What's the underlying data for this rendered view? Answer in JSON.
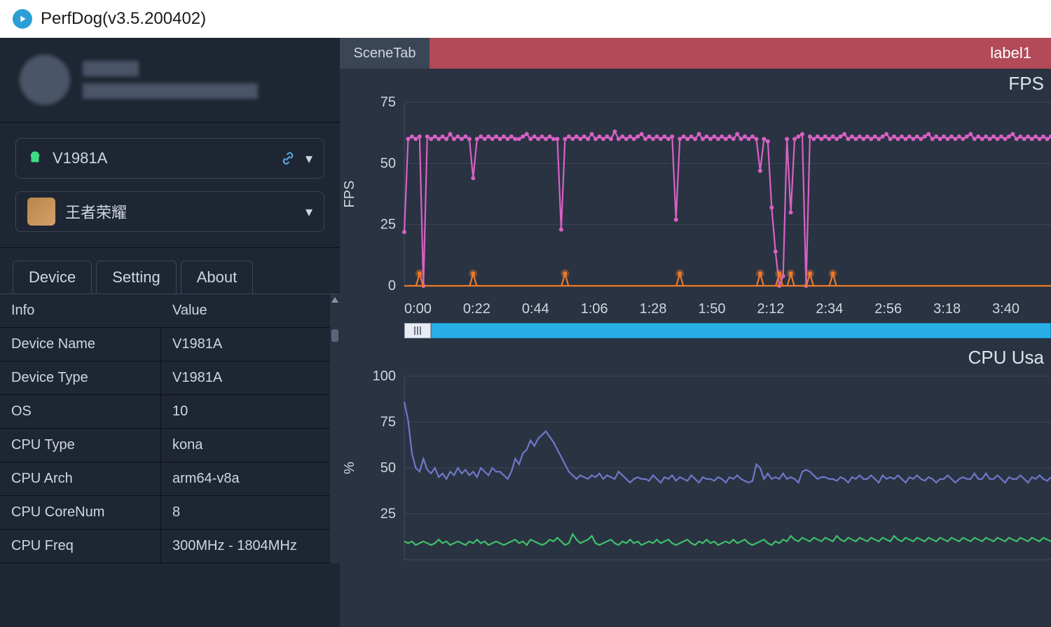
{
  "window": {
    "title": "PerfDog(v3.5.200402)"
  },
  "sidebar": {
    "device_selector": {
      "label": "V1981A"
    },
    "app_selector": {
      "label": "王者荣耀"
    },
    "tabs": {
      "device": "Device",
      "setting": "Setting",
      "about": "About"
    },
    "info_header": {
      "info": "Info",
      "value": "Value"
    },
    "info_rows": [
      {
        "k": "Device Name",
        "v": "V1981A"
      },
      {
        "k": "Device Type",
        "v": "V1981A"
      },
      {
        "k": "OS",
        "v": "10"
      },
      {
        "k": "CPU Type",
        "v": "kona"
      },
      {
        "k": "CPU Arch",
        "v": "arm64-v8a"
      },
      {
        "k": "CPU CoreNum",
        "v": "8"
      },
      {
        "k": "CPU Freq",
        "v": "300MHz - 1804MHz"
      }
    ]
  },
  "scene": {
    "tab": "SceneTab",
    "label": "label1"
  },
  "colors": {
    "bg_main": "#2a3342",
    "bg_side": "#1e2633",
    "text": "#cfd6e1",
    "accent": "#29aee6",
    "fps_line": "#d861c5",
    "jank_line": "#ee7b2a",
    "cpu_app": "#6f78c8",
    "cpu_sys": "#3fbf6a",
    "label_bar": "#b24a58",
    "grid": "#3a4556"
  },
  "fps_chart": {
    "type": "line",
    "title": "FPS",
    "ylabel": "FPS",
    "ylim": [
      0,
      75
    ],
    "yticks": [
      0,
      25,
      50,
      75
    ],
    "xlim_sec": [
      0,
      230
    ],
    "xticks_labels": [
      "0:00",
      "0:22",
      "0:44",
      "1:06",
      "1:28",
      "1:50",
      "2:12",
      "2:34",
      "2:56",
      "3:18",
      "3:40"
    ],
    "fps_series": [
      22,
      60,
      61,
      60,
      61,
      0,
      61,
      60,
      61,
      60,
      61,
      60,
      62,
      60,
      61,
      60,
      61,
      60,
      44,
      60,
      61,
      60,
      61,
      60,
      61,
      60,
      61,
      60,
      61,
      60,
      60,
      61,
      62,
      60,
      61,
      60,
      61,
      60,
      61,
      60,
      60,
      23,
      60,
      61,
      60,
      61,
      60,
      61,
      60,
      62,
      60,
      61,
      60,
      61,
      60,
      63,
      60,
      61,
      60,
      61,
      60,
      61,
      62,
      60,
      61,
      60,
      61,
      60,
      61,
      60,
      61,
      27,
      60,
      61,
      60,
      61,
      60,
      62,
      60,
      61,
      60,
      61,
      60,
      61,
      60,
      61,
      60,
      62,
      60,
      61,
      60,
      61,
      60,
      47,
      60,
      59,
      32,
      14,
      0,
      4,
      60,
      30,
      60,
      61,
      62,
      0,
      61,
      60,
      61,
      60,
      61,
      60,
      61,
      60,
      61,
      62,
      60,
      61,
      60,
      61,
      60,
      61,
      60,
      61,
      60,
      61,
      62,
      60,
      61,
      60,
      61,
      60,
      61,
      60,
      61,
      60,
      61,
      62,
      60,
      61,
      60,
      61,
      60,
      61,
      60,
      61,
      60,
      61,
      62,
      60,
      61,
      60,
      61,
      60,
      61,
      60,
      61,
      60,
      61,
      62,
      60,
      61,
      60,
      61,
      60,
      61,
      60,
      61,
      60,
      61
    ],
    "jank_series_x": [
      4,
      18,
      42,
      72,
      93,
      98,
      101,
      106,
      112
    ],
    "line_color": "#d861c5",
    "jank_color": "#ee7b2a",
    "marker_size": 3
  },
  "cpu_chart": {
    "type": "line",
    "title": "CPU Usa",
    "ylabel": "%",
    "ylim": [
      0,
      100
    ],
    "yticks": [
      25,
      50,
      75,
      100
    ],
    "app_series": [
      86,
      76,
      58,
      50,
      48,
      55,
      49,
      47,
      50,
      45,
      47,
      44,
      48,
      46,
      50,
      47,
      49,
      46,
      48,
      45,
      50,
      48,
      46,
      50,
      48,
      48,
      46,
      44,
      48,
      55,
      52,
      58,
      60,
      65,
      62,
      66,
      68,
      70,
      67,
      64,
      60,
      56,
      52,
      48,
      46,
      44,
      46,
      45,
      44,
      46,
      45,
      47,
      44,
      46,
      45,
      44,
      48,
      46,
      44,
      42,
      44,
      45,
      44,
      44,
      43,
      46,
      44,
      42,
      45,
      44,
      46,
      43,
      45,
      44,
      43,
      46,
      44,
      42,
      45,
      44,
      44,
      43,
      45,
      44,
      42,
      45,
      44,
      46,
      44,
      43,
      42,
      43,
      52,
      50,
      44,
      47,
      44,
      45,
      44,
      47,
      44,
      45,
      44,
      42,
      48,
      49,
      48,
      46,
      44,
      45,
      45,
      44,
      44,
      43,
      45,
      44,
      42,
      45,
      44,
      46,
      44,
      44,
      46,
      44,
      42,
      46,
      44,
      45,
      44,
      46,
      44,
      42,
      45,
      44,
      46,
      44,
      43,
      45,
      44,
      42,
      44,
      44,
      46,
      44,
      42,
      44,
      45,
      44,
      44,
      47,
      44,
      44,
      47,
      44,
      44,
      46,
      44,
      42,
      45,
      44,
      44,
      46,
      44,
      42,
      45,
      44,
      46,
      44,
      43,
      45
    ],
    "sys_series": [
      10,
      9,
      10,
      8,
      9,
      10,
      9,
      8,
      9,
      11,
      9,
      10,
      8,
      9,
      10,
      9,
      8,
      10,
      9,
      11,
      9,
      10,
      8,
      9,
      10,
      9,
      8,
      9,
      10,
      11,
      9,
      10,
      8,
      11,
      10,
      9,
      8,
      9,
      11,
      10,
      12,
      10,
      8,
      9,
      14,
      11,
      9,
      10,
      11,
      13,
      9,
      8,
      9,
      10,
      11,
      9,
      8,
      10,
      9,
      11,
      9,
      10,
      8,
      9,
      10,
      9,
      11,
      9,
      10,
      11,
      9,
      8,
      9,
      10,
      11,
      9,
      8,
      10,
      9,
      11,
      9,
      10,
      8,
      9,
      10,
      9,
      11,
      9,
      10,
      11,
      9,
      8,
      9,
      10,
      11,
      9,
      8,
      10,
      9,
      11,
      10,
      13,
      11,
      10,
      12,
      11,
      10,
      12,
      11,
      10,
      12,
      11,
      10,
      13,
      11,
      10,
      12,
      11,
      10,
      12,
      11,
      10,
      12,
      11,
      10,
      12,
      11,
      10,
      13,
      11,
      10,
      12,
      11,
      10,
      12,
      11,
      10,
      12,
      11,
      10,
      12,
      11,
      10,
      12,
      11,
      10,
      12,
      11,
      10,
      12,
      11,
      10,
      12,
      11,
      10,
      12,
      11,
      10,
      12,
      11,
      10,
      12,
      11,
      10,
      12,
      11,
      10,
      12,
      11,
      10
    ],
    "app_color": "#6f78c8",
    "sys_color": "#3fbf6a"
  }
}
